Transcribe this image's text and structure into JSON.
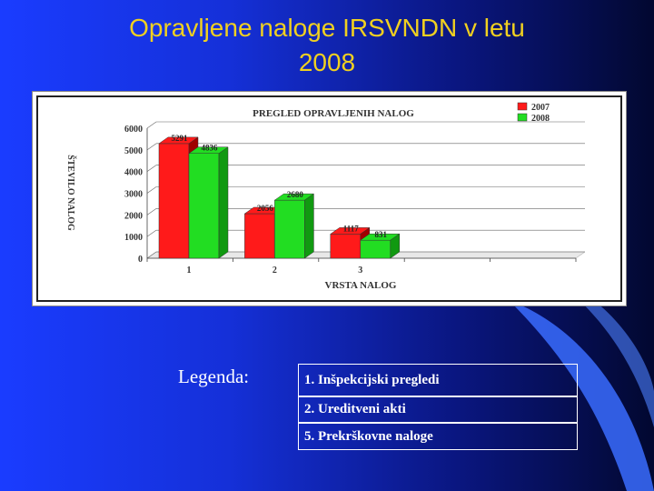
{
  "slide": {
    "title_line1": "Opravljene naloge IRSVNDN v letu",
    "title_line2": "2008",
    "legend_label": "Legenda:",
    "legend_items": [
      "1. Inšpekcijski pregledi",
      "2. Ureditveni akti",
      "5. Prekrškovne naloge"
    ],
    "colors": {
      "title": "#f0d020",
      "series_2007": "#ff1a1a",
      "series_2008": "#22dd22"
    }
  },
  "chart_data": {
    "type": "bar",
    "title": "PREGLED OPRAVLJENIH NALOG",
    "xlabel": "VRSTA NALOG",
    "ylabel": "ŠTEVILO NALOG",
    "categories": [
      "1",
      "2",
      "3"
    ],
    "series": [
      {
        "name": "2007",
        "values": [
          5291,
          2056,
          1117
        ]
      },
      {
        "name": "2008",
        "values": [
          4836,
          2680,
          831
        ]
      }
    ],
    "ylim": [
      0,
      6000
    ],
    "yticks": [
      "0",
      "1000",
      "2000",
      "3000",
      "4000",
      "5000",
      "6000"
    ],
    "grid": true,
    "legend": "top-right"
  }
}
